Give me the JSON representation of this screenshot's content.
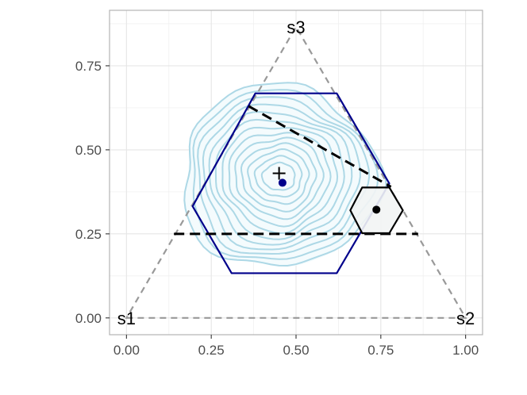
{
  "chart_data": {
    "type": "scatter",
    "title": "",
    "xlabel": "",
    "ylabel": "",
    "xlim": [
      -0.05,
      1.05
    ],
    "ylim": [
      -0.05,
      0.915
    ],
    "x_ticks": [
      0.0,
      0.25,
      0.5,
      0.75,
      1.0
    ],
    "x_tick_labels": [
      "0.00",
      "0.25",
      "0.50",
      "0.75",
      "1.00"
    ],
    "y_ticks": [
      0.0,
      0.25,
      0.5,
      0.75
    ],
    "y_tick_labels": [
      "0.00",
      "0.25",
      "0.50",
      "0.75"
    ],
    "grid": true,
    "vertex_labels": [
      {
        "text": "s1",
        "x": 0.0,
        "y": 0.0
      },
      {
        "text": "s2",
        "x": 1.0,
        "y": 0.0
      },
      {
        "text": "s3",
        "x": 0.5,
        "y": 0.866
      }
    ],
    "simplex_triangle": [
      [
        0.0,
        0.0
      ],
      [
        1.0,
        0.0
      ],
      [
        0.5,
        0.866
      ]
    ],
    "large_hexagon": [
      [
        0.195,
        0.332
      ],
      [
        0.31,
        0.133
      ],
      [
        0.62,
        0.133
      ],
      [
        0.775,
        0.4
      ],
      [
        0.62,
        0.668
      ],
      [
        0.38,
        0.668
      ]
    ],
    "small_hexagon": [
      [
        0.66,
        0.32
      ],
      [
        0.695,
        0.252
      ],
      [
        0.775,
        0.252
      ],
      [
        0.815,
        0.32
      ],
      [
        0.775,
        0.388
      ],
      [
        0.695,
        0.388
      ]
    ],
    "dashed_lines": [
      {
        "x": [
          0.14,
          0.86
        ],
        "y": [
          0.25,
          0.25
        ]
      },
      {
        "x": [
          0.36,
          0.78
        ],
        "y": [
          0.63,
          0.39
        ]
      }
    ],
    "points": [
      {
        "marker": "cross",
        "x": 0.45,
        "y": 0.43
      },
      {
        "marker": "dot",
        "color": "#00008b",
        "x": 0.46,
        "y": 0.402
      },
      {
        "marker": "dot",
        "color": "#000000",
        "x": 0.737,
        "y": 0.322
      }
    ],
    "density_center": [
      0.45,
      0.42
    ],
    "colors": {
      "large_hexagon": "#00008b",
      "small_hexagon": "#000000",
      "contours": "#add8e6",
      "triangle": "#999999"
    }
  }
}
